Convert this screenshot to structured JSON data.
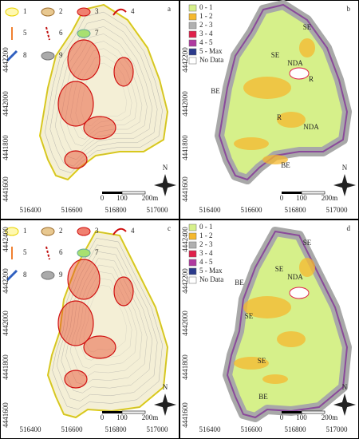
{
  "panels": [
    {
      "letter": "a",
      "legend": [
        "1",
        "2",
        "3",
        "4",
        "5",
        "6",
        "7",
        "8",
        "9"
      ],
      "x_ticks": [
        "516400",
        "516600",
        "516800",
        "517000"
      ],
      "y_ticks": [
        "4442200",
        "4442000",
        "4441800",
        "4441600"
      ],
      "scale": [
        "0",
        "100",
        "200m"
      ],
      "north": "N"
    },
    {
      "letter": "b",
      "legend": [
        "0 - 1",
        "1 - 2",
        "2 - 3",
        "3 - 4",
        "4 - 5",
        "5 - Max",
        "No Data"
      ],
      "labels": [
        "SE",
        "SE",
        "NDA",
        "R",
        "BE",
        "R",
        "NDA",
        "BE"
      ],
      "x_ticks": [
        "516400",
        "516600",
        "516800",
        "517000"
      ],
      "y_ticks": [
        "4442200",
        "4442000",
        "4441800",
        "4441600"
      ],
      "scale": [
        "0",
        "100",
        "200m"
      ],
      "north": "N"
    },
    {
      "letter": "c",
      "legend": [
        "1",
        "2",
        "3",
        "4",
        "5",
        "6",
        "7",
        "8",
        "9"
      ],
      "x_ticks": [
        "516400",
        "516600",
        "516800",
        "517000"
      ],
      "y_ticks": [
        "4442400",
        "4442200",
        "4442000",
        "4441800",
        "4441600"
      ],
      "scale": [
        "0",
        "100",
        "200m"
      ],
      "north": "N"
    },
    {
      "letter": "d",
      "legend": [
        "0 - 1",
        "1 - 2",
        "2 - 3",
        "3 - 4",
        "4 - 5",
        "5 - Max",
        "No Data"
      ],
      "labels": [
        "SE",
        "SE",
        "NDA",
        "BE",
        "SE",
        "SE",
        "BE"
      ],
      "x_ticks": [
        "516400",
        "516600",
        "516800",
        "517000"
      ],
      "y_ticks": [
        "4442400",
        "4442200",
        "4442000",
        "4441800",
        "4441600"
      ],
      "scale": [
        "0",
        "100",
        "200m"
      ],
      "north": "N"
    }
  ]
}
